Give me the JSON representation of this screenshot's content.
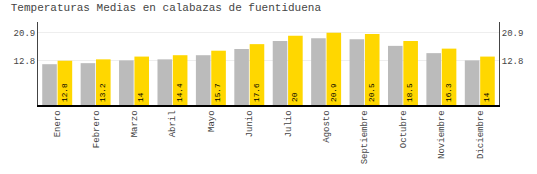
{
  "chart_data": {
    "type": "bar",
    "title": "Temperaturas Medias en calabazas de fuentiduena",
    "categories": [
      "Enero",
      "Febrero",
      "Marzo",
      "Abril",
      "Mayo",
      "Junio",
      "Julio",
      "Agosto",
      "Septiembre",
      "Octubre",
      "Noviembre",
      "Diciembre"
    ],
    "series": [
      {
        "color": "#BBBBBB",
        "values": [
          11.8,
          12.1,
          12.9,
          13.2,
          14.4,
          16.2,
          18.5,
          19.3,
          19.0,
          17.1,
          15.0,
          12.9
        ]
      },
      {
        "color": "#FFD700",
        "values": [
          12.8,
          13.2,
          14.0,
          14.4,
          15.7,
          17.6,
          20.0,
          20.9,
          20.5,
          18.5,
          16.3,
          14.0
        ],
        "data_labels": true
      }
    ],
    "ylim": [
      0.0,
      24.0
    ],
    "yticks": [
      12.8,
      20.9
    ],
    "y2lim": [
      0.0,
      24.0
    ],
    "y2ticks": [
      12.8,
      20.9
    ],
    "grid": true
  }
}
